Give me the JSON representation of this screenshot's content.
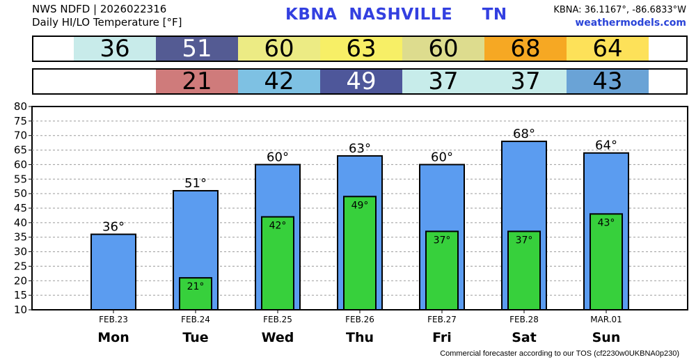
{
  "header": {
    "line1": "NWS NDFD | 2026022316",
    "line2": "Daily HI/LO Temperature [°F]",
    "station": "KBNA  NASHVILLE     TN",
    "coords": "KBNA: 36.1167°, -86.6833°W",
    "site": "weathermodels.com"
  },
  "bands": {
    "high": [
      {
        "text": "36",
        "color": "#c8ebea"
      },
      {
        "text": "51",
        "color": "#545b93"
      },
      {
        "text": "60",
        "color": "#eceb84"
      },
      {
        "text": "63",
        "color": "#f7ef66"
      },
      {
        "text": "60",
        "color": "#dddc8e"
      },
      {
        "text": "68",
        "color": "#f6a823"
      },
      {
        "text": "64",
        "color": "#fde159"
      }
    ],
    "low": [
      {
        "text": "21",
        "color": "#cf7b7b"
      },
      {
        "text": "42",
        "color": "#7ec1e3"
      },
      {
        "text": "49",
        "color": "#4e579a"
      },
      {
        "text": "37",
        "color": "#c7ecea"
      },
      {
        "text": "37",
        "color": "#c7ecea"
      },
      {
        "text": "43",
        "color": "#6aa3d6"
      }
    ]
  },
  "chart_data": {
    "type": "bar",
    "categories": [
      "FEB.23",
      "FEB.24",
      "FEB.25",
      "FEB.26",
      "FEB.27",
      "FEB.28",
      "MAR.01"
    ],
    "days": [
      "Mon",
      "Tue",
      "Wed",
      "Thu",
      "Fri",
      "Sat",
      "Sun"
    ],
    "series": [
      {
        "values": [
          36,
          51,
          60,
          63,
          60,
          68,
          64
        ],
        "labels": [
          "36°",
          "51°",
          "60°",
          "63°",
          "60°",
          "68°",
          "64°"
        ],
        "color": "#5b9cf0"
      },
      {
        "values": [
          null,
          21,
          42,
          49,
          37,
          37,
          43
        ],
        "labels": [
          "",
          "21°",
          "42°",
          "49°",
          "37°",
          "37°",
          "43°"
        ],
        "color": "#37d03c"
      }
    ],
    "ylim": [
      10,
      80
    ],
    "yticks": [
      "10",
      "15",
      "20",
      "25",
      "30",
      "35",
      "40",
      "45",
      "50",
      "55",
      "60",
      "65",
      "70",
      "75",
      "80"
    ],
    "grid": true
  },
  "footer": "Commercial forecaster according to our TOS (cf2230w0UKBNA0p230)"
}
